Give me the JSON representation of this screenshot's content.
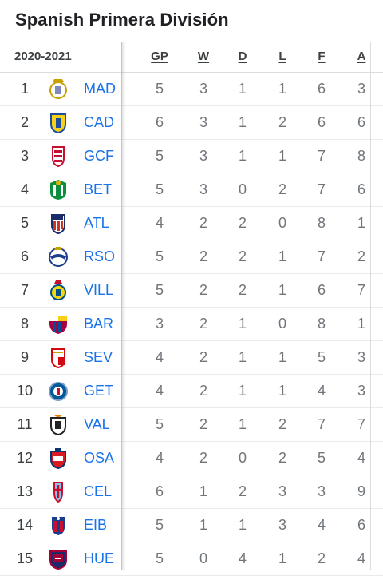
{
  "title": "Spanish Primera División",
  "season": "2020-2021",
  "columns": [
    "GP",
    "W",
    "D",
    "L",
    "F",
    "A"
  ],
  "rows": [
    {
      "rank": "1",
      "team": "MAD",
      "crest": "real-madrid-crest-icon",
      "stats": [
        "5",
        "3",
        "1",
        "1",
        "6",
        "3"
      ]
    },
    {
      "rank": "2",
      "team": "CAD",
      "crest": "cadiz-crest-icon",
      "stats": [
        "6",
        "3",
        "1",
        "2",
        "6",
        "6"
      ]
    },
    {
      "rank": "3",
      "team": "GCF",
      "crest": "granada-crest-icon",
      "stats": [
        "5",
        "3",
        "1",
        "1",
        "7",
        "8"
      ]
    },
    {
      "rank": "4",
      "team": "BET",
      "crest": "betis-crest-icon",
      "stats": [
        "5",
        "3",
        "0",
        "2",
        "7",
        "6"
      ]
    },
    {
      "rank": "5",
      "team": "ATL",
      "crest": "atletico-crest-icon",
      "stats": [
        "4",
        "2",
        "2",
        "0",
        "8",
        "1"
      ]
    },
    {
      "rank": "6",
      "team": "RSO",
      "crest": "real-sociedad-crest-icon",
      "stats": [
        "5",
        "2",
        "2",
        "1",
        "7",
        "2"
      ]
    },
    {
      "rank": "7",
      "team": "VILL",
      "crest": "villarreal-crest-icon",
      "stats": [
        "5",
        "2",
        "2",
        "1",
        "6",
        "7"
      ]
    },
    {
      "rank": "8",
      "team": "BAR",
      "crest": "barcelona-crest-icon",
      "stats": [
        "3",
        "2",
        "1",
        "0",
        "8",
        "1"
      ]
    },
    {
      "rank": "9",
      "team": "SEV",
      "crest": "sevilla-crest-icon",
      "stats": [
        "4",
        "2",
        "1",
        "1",
        "5",
        "3"
      ]
    },
    {
      "rank": "10",
      "team": "GET",
      "crest": "getafe-crest-icon",
      "stats": [
        "4",
        "2",
        "1",
        "1",
        "4",
        "3"
      ]
    },
    {
      "rank": "11",
      "team": "VAL",
      "crest": "valencia-crest-icon",
      "stats": [
        "5",
        "2",
        "1",
        "2",
        "7",
        "7"
      ]
    },
    {
      "rank": "12",
      "team": "OSA",
      "crest": "osasuna-crest-icon",
      "stats": [
        "4",
        "2",
        "0",
        "2",
        "5",
        "4"
      ]
    },
    {
      "rank": "13",
      "team": "CEL",
      "crest": "celta-crest-icon",
      "stats": [
        "6",
        "1",
        "2",
        "3",
        "3",
        "9"
      ]
    },
    {
      "rank": "14",
      "team": "EIB",
      "crest": "eibar-crest-icon",
      "stats": [
        "5",
        "1",
        "1",
        "3",
        "4",
        "6"
      ]
    },
    {
      "rank": "15",
      "team": "HUE",
      "crest": "huesca-crest-icon",
      "stats": [
        "5",
        "0",
        "4",
        "1",
        "2",
        "4"
      ]
    }
  ],
  "colors": {
    "team_link": "#1a73e8",
    "stat_text": "#70757a",
    "divider": "#dadce0"
  }
}
